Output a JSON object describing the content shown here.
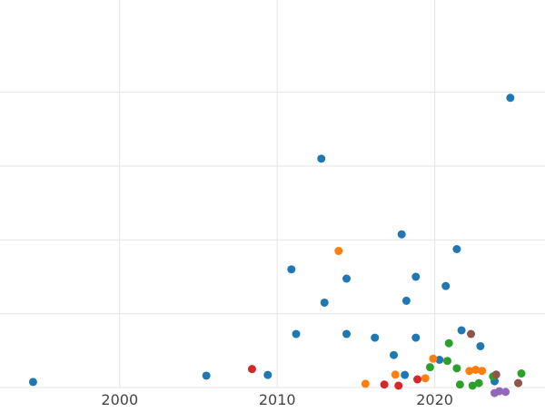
{
  "chart_data": {
    "type": "scatter",
    "title": "",
    "xlabel": "",
    "ylabel": "",
    "grid": true,
    "legend": "none",
    "xlim": [
      1992.4,
      2027.0
    ],
    "ylim": [
      0,
      10.5
    ],
    "x_ticks": [
      2000,
      2010,
      2020
    ],
    "x_tick_labels": [
      "2000",
      "2010",
      "2020"
    ],
    "y_gridlines": [
      0,
      2,
      4,
      6,
      8
    ],
    "colors": {
      "blue": "#1f77b4",
      "orange": "#ff7f0e",
      "green": "#2ca02c",
      "red": "#d62728",
      "purple": "#9467bd",
      "brown": "#8c564b",
      "grid": "#e5e5e5",
      "tick_text": "#444444"
    },
    "series": [
      {
        "color": "blue",
        "points": [
          [
            1994.5,
            0.15
          ],
          [
            2005.5,
            0.32
          ],
          [
            2009.4,
            0.34
          ],
          [
            2011.2,
            1.45
          ],
          [
            2010.9,
            3.2
          ],
          [
            2012.8,
            6.2
          ],
          [
            2013.0,
            2.3
          ],
          [
            2014.4,
            1.45
          ],
          [
            2014.4,
            2.95
          ],
          [
            2016.2,
            1.35
          ],
          [
            2017.4,
            0.88
          ],
          [
            2017.9,
            4.15
          ],
          [
            2018.1,
            0.34
          ],
          [
            2018.2,
            2.35
          ],
          [
            2018.8,
            3.0
          ],
          [
            2018.8,
            1.35
          ],
          [
            2020.3,
            0.75
          ],
          [
            2020.7,
            2.75
          ],
          [
            2021.4,
            3.75
          ],
          [
            2021.7,
            1.55
          ],
          [
            2022.9,
            1.12
          ],
          [
            2023.8,
            0.17
          ],
          [
            2024.8,
            7.85
          ]
        ]
      },
      {
        "color": "orange",
        "points": [
          [
            2013.9,
            3.7
          ],
          [
            2015.6,
            0.1
          ],
          [
            2017.5,
            0.35
          ],
          [
            2019.4,
            0.25
          ],
          [
            2019.9,
            0.78
          ],
          [
            2022.2,
            0.45
          ],
          [
            2022.6,
            0.48
          ],
          [
            2023.0,
            0.45
          ]
        ]
      },
      {
        "color": "green",
        "points": [
          [
            2019.7,
            0.55
          ],
          [
            2020.8,
            0.72
          ],
          [
            2020.9,
            1.2
          ],
          [
            2021.4,
            0.52
          ],
          [
            2021.6,
            0.08
          ],
          [
            2022.4,
            0.05
          ],
          [
            2022.8,
            0.12
          ],
          [
            2023.7,
            0.3
          ],
          [
            2025.5,
            0.38
          ]
        ]
      },
      {
        "color": "red",
        "points": [
          [
            2008.4,
            0.5
          ],
          [
            2016.8,
            0.08
          ],
          [
            2017.7,
            0.05
          ],
          [
            2018.9,
            0.22
          ]
        ]
      },
      {
        "color": "purple",
        "points": [
          [
            2023.8,
            -0.15
          ],
          [
            2024.1,
            -0.1
          ],
          [
            2024.5,
            -0.12
          ]
        ]
      },
      {
        "color": "brown",
        "points": [
          [
            2022.3,
            1.45
          ],
          [
            2023.9,
            0.35
          ],
          [
            2025.3,
            0.12
          ]
        ]
      }
    ]
  }
}
